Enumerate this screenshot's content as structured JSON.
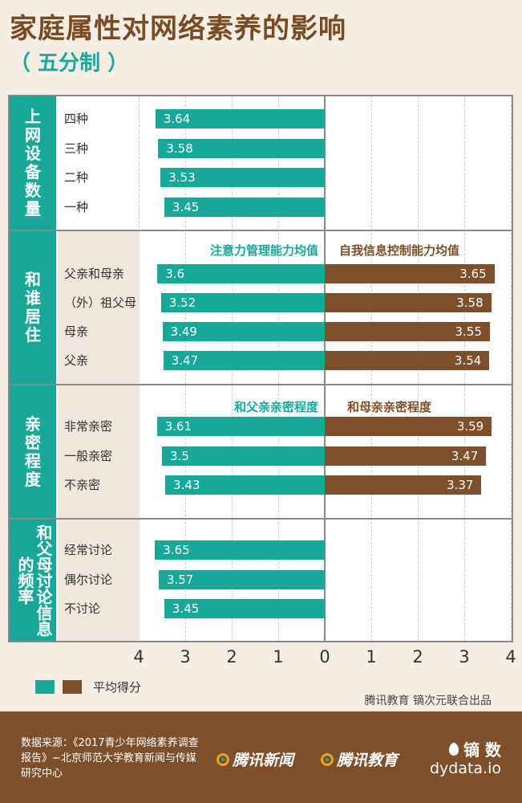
{
  "title": "家庭属性对网络素养的影响",
  "subtitle": "（ 五分制 ）",
  "chart_data": {
    "type": "bar",
    "orientation": "horizontal-diverging",
    "axis": {
      "range": [
        -4,
        4
      ],
      "ticks": [
        "4",
        "3",
        "2",
        "1",
        "0",
        "1",
        "2",
        "3",
        "4"
      ]
    },
    "grid": true,
    "groups": [
      {
        "label": "上网设备数量",
        "series_headers": [
          "",
          ""
        ],
        "categories": [
          "四种",
          "三种",
          "二种",
          "一种"
        ],
        "left_values": [
          3.64,
          3.58,
          3.53,
          3.45
        ],
        "right_values": [
          null,
          null,
          null,
          null
        ]
      },
      {
        "label": "和谁居住",
        "series_headers": [
          "注意力管理能力均值",
          "自我信息控制能力均值"
        ],
        "categories": [
          "父亲和母亲",
          "（外）祖父母",
          "母亲",
          "父亲"
        ],
        "left_values": [
          3.6,
          3.52,
          3.49,
          3.47
        ],
        "right_values": [
          3.65,
          3.58,
          3.55,
          3.54
        ]
      },
      {
        "label": "亲密程度",
        "series_headers": [
          "和父亲亲密程度",
          "和母亲亲密程度"
        ],
        "categories": [
          "非常亲密",
          "一般亲密",
          "不亲密"
        ],
        "left_values": [
          3.61,
          3.5,
          3.43
        ],
        "right_values": [
          3.59,
          3.47,
          3.37
        ]
      },
      {
        "label": "和父母讨论信息的频率",
        "series_headers": [
          "",
          ""
        ],
        "categories": [
          "经常讨论",
          "偶尔讨论",
          "不讨论"
        ],
        "left_values": [
          3.65,
          3.57,
          3.45
        ],
        "right_values": [
          null,
          null,
          null
        ]
      }
    ],
    "legend": {
      "label": "平均得分",
      "placement": "bottom-left"
    },
    "colors": {
      "left": "#17a899",
      "right": "#7d4f2a"
    }
  },
  "credit": "腾讯教育 镝次元联合出品",
  "footer": {
    "source": "数据来源：《2017青少年网络素养调查报告》−北京师范大学教育新闻与传媒研究中心",
    "logo_news": "腾讯新闻",
    "logo_edu": "腾讯教育",
    "brand_cn": "镝 数",
    "brand_en": "dydata.io"
  }
}
